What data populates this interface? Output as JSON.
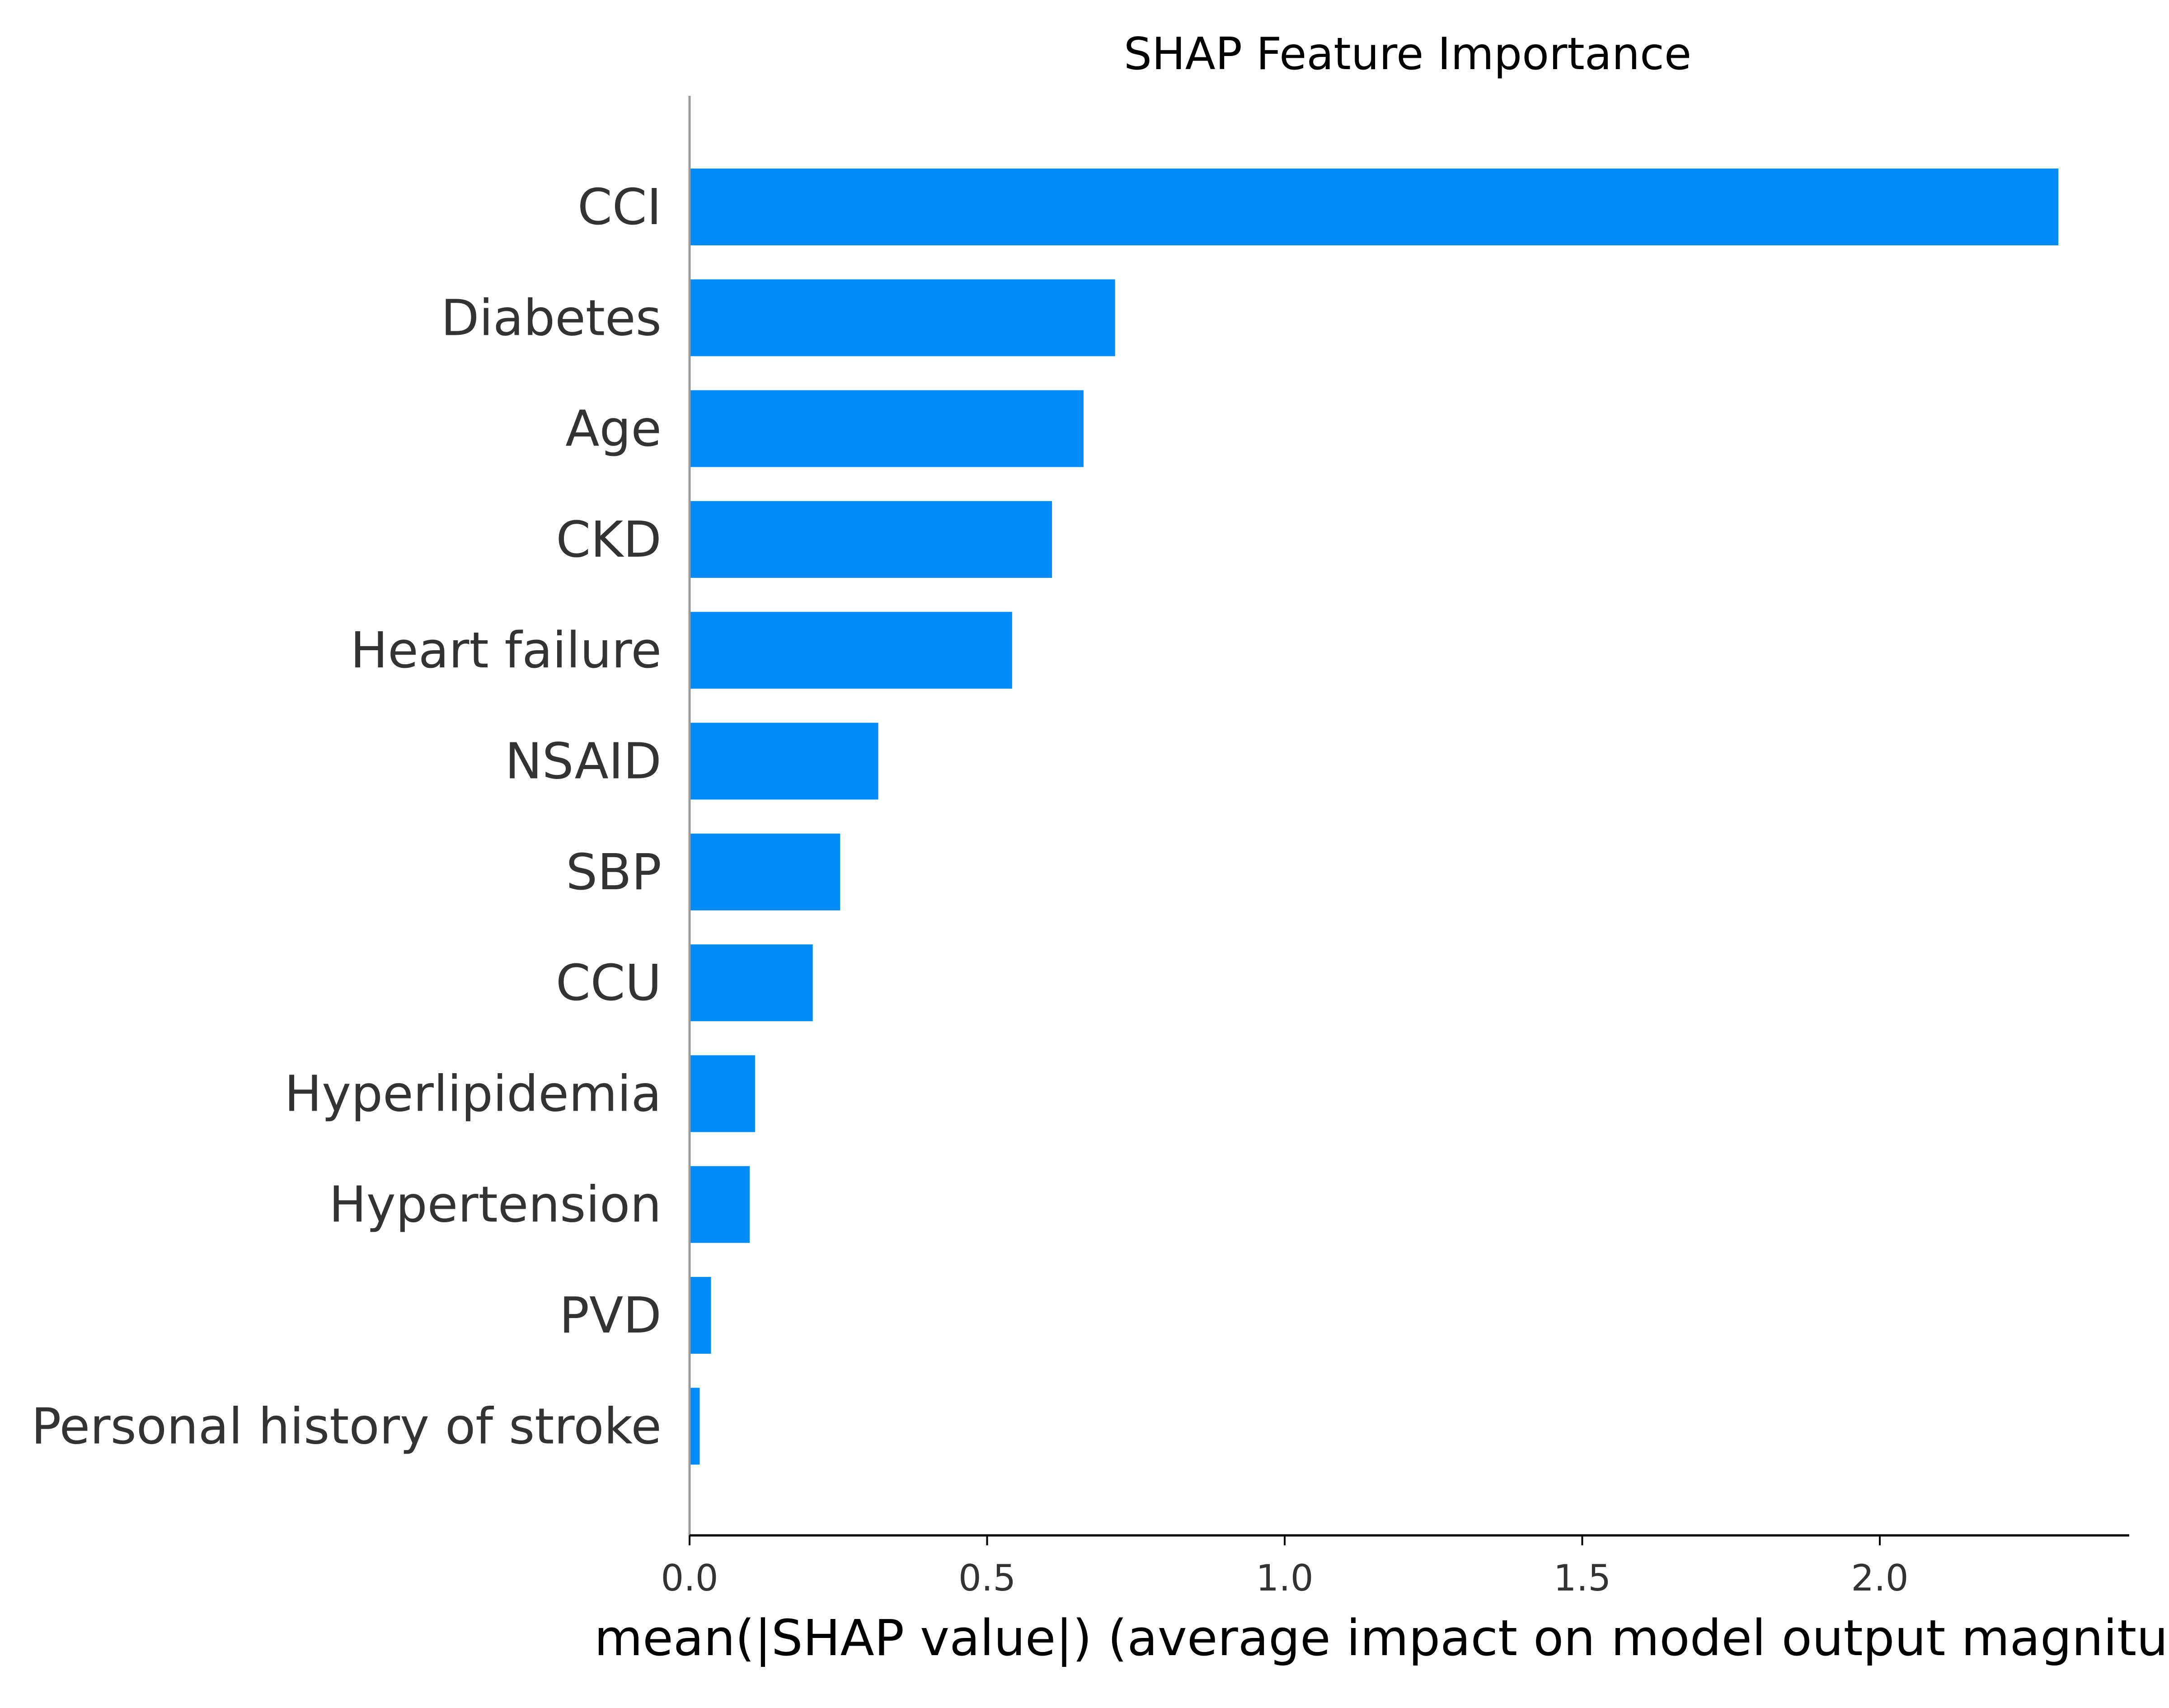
{
  "chart_data": {
    "type": "bar",
    "orientation": "horizontal",
    "title": "SHAP Feature Importance",
    "xlabel": "mean(|SHAP value|) (average impact on model output magnitude)",
    "ylabel": "",
    "categories": [
      "CCI",
      "Diabetes",
      "Age",
      "CKD",
      "Heart failure",
      "NSAID",
      "SBP",
      "CCU",
      "Hyperlipidemia",
      "Hypertension",
      "PVD",
      "Personal history of stroke"
    ],
    "values": [
      2.3,
      0.715,
      0.662,
      0.609,
      0.542,
      0.317,
      0.253,
      0.207,
      0.11,
      0.101,
      0.036,
      0.017
    ],
    "xticks": [
      "0.0",
      "0.5",
      "1.0",
      "1.5",
      "2.0"
    ],
    "xtick_values": [
      0,
      0.5,
      1.0,
      1.5,
      2.0
    ],
    "xlim": [
      0,
      2.42
    ],
    "grid": false,
    "legend": "none",
    "colors": {
      "bar": "#008bfb",
      "y_axis_line": "#999999",
      "x_axis_line": "#000000",
      "label_text": "#333333",
      "title_text": "#000000"
    }
  }
}
